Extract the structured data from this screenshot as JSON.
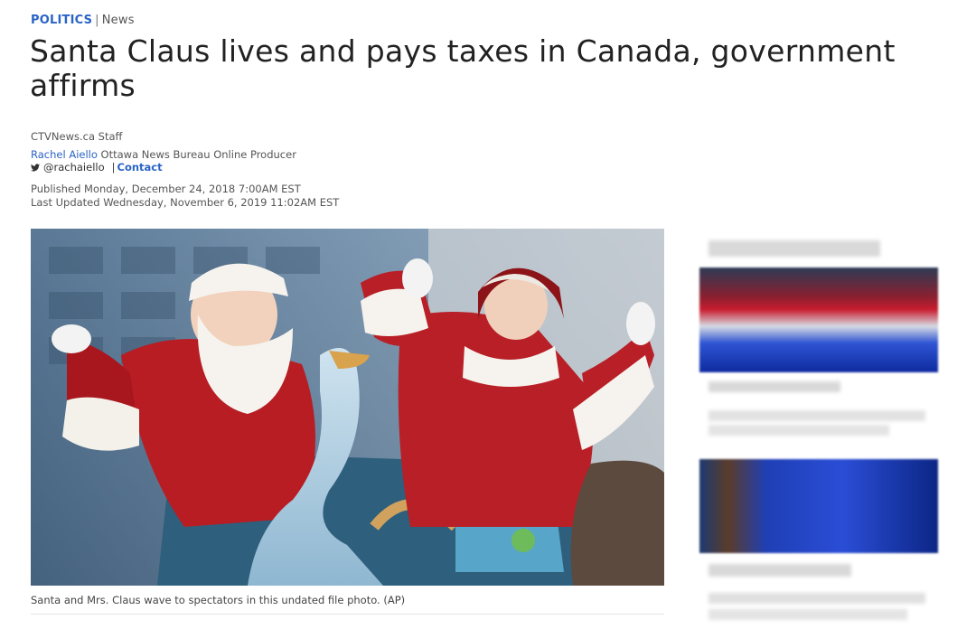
{
  "breadcrumb": {
    "category": "POLITICS",
    "separator": "|",
    "subcategory": "News"
  },
  "article": {
    "headline": "Santa Claus lives and pays taxes in Canada, government affirms",
    "source": "CTVNews.ca Staff",
    "author": {
      "name": "Rachel Aiello",
      "role": "Ottawa News Bureau Online Producer",
      "twitter_handle": "@rachaiello",
      "contact_separator": "|",
      "contact_label": "Contact"
    },
    "published": "Published Monday, December 24, 2018 7:00AM EST",
    "updated": "Last Updated Wednesday, November 6, 2019 11:02AM EST",
    "image": {
      "icon": "santa-parade-photo"
    },
    "caption": "Santa and Mrs. Claus wave to spectators in this undated file photo. (AP)"
  },
  "sidebar": {
    "note": ""
  },
  "colors": {
    "link_blue": "#2a64c5",
    "text_dark": "#222222",
    "text_meta": "#555555"
  }
}
